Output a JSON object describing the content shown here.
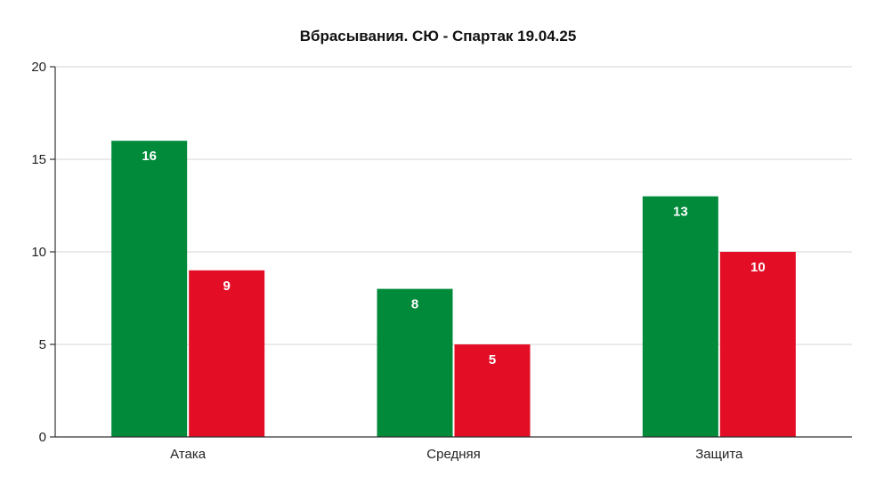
{
  "chart_data": {
    "type": "bar",
    "title": "Вбрасывания. СЮ - Спартак 19.04.25",
    "categories": [
      "Атака",
      "Средняя",
      "Защита"
    ],
    "series": [
      {
        "values": [
          16,
          8,
          13
        ],
        "color": "#008a3a"
      },
      {
        "values": [
          9,
          5,
          10
        ],
        "color": "#e30e25"
      }
    ],
    "ylim": [
      0,
      20
    ],
    "yticks": [
      0,
      5,
      10,
      15,
      20
    ],
    "grid": true,
    "legend": "none"
  }
}
